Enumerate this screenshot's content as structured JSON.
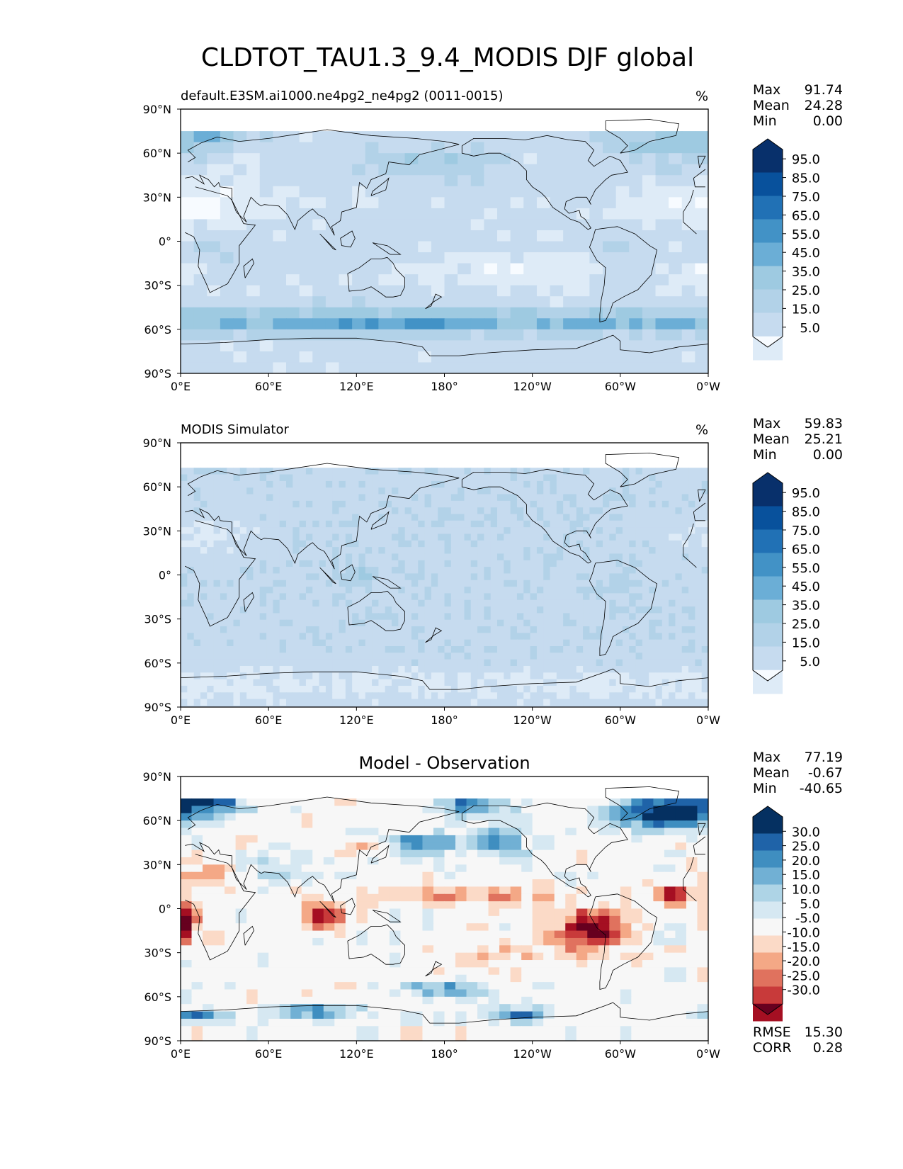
{
  "figure": {
    "title": "CLDTOT_TAU1.3_9.4_MODIS DJF global"
  },
  "axes_labels": {
    "lat_ticks": [
      "90°N",
      "60°N",
      "30°N",
      "0°",
      "30°S",
      "60°S",
      "90°S"
    ],
    "lon_ticks": [
      "0°E",
      "60°E",
      "120°E",
      "180°",
      "120°W",
      "60°W",
      "0°W"
    ]
  },
  "colors": {
    "blues": [
      "#f7fbff",
      "#deebf7",
      "#c6dbef",
      "#b2d2e8",
      "#9ecae1",
      "#6baed6",
      "#4292c6",
      "#2171b5",
      "#08519c",
      "#08306b"
    ],
    "diverging": [
      "#67001f",
      "#a50f22",
      "#c83a3a",
      "#e0725e",
      "#f4a886",
      "#fbdac7",
      "#f7f7f7",
      "#d6e8f2",
      "#aed4e6",
      "#71b0d4",
      "#3f8ec0",
      "#1f63a8",
      "#053061"
    ]
  },
  "chart_data": [
    {
      "type": "heatmap",
      "title": "default.E3SM.ai1000.ne4pg2_ne4pg2 (0011-0015)",
      "units": "%",
      "stats": [
        {
          "label": "Max",
          "value": "91.74"
        },
        {
          "label": "Mean",
          "value": "24.28"
        },
        {
          "label": "Min",
          "value": "0.00"
        }
      ],
      "colorbar_ticks": [
        "95.0",
        "85.0",
        "75.0",
        "65.0",
        "55.0",
        "45.0",
        "35.0",
        "25.0",
        "15.0",
        "5.0"
      ],
      "xlim": [
        0,
        360
      ],
      "ylim": [
        -90,
        90
      ]
    },
    {
      "type": "heatmap",
      "title": "MODIS Simulator",
      "units": "%",
      "stats": [
        {
          "label": "Max",
          "value": "59.83"
        },
        {
          "label": "Mean",
          "value": "25.21"
        },
        {
          "label": "Min",
          "value": "0.00"
        }
      ],
      "colorbar_ticks": [
        "95.0",
        "85.0",
        "75.0",
        "65.0",
        "55.0",
        "45.0",
        "35.0",
        "25.0",
        "15.0",
        "5.0"
      ],
      "xlim": [
        0,
        360
      ],
      "ylim": [
        -90,
        90
      ]
    },
    {
      "type": "heatmap",
      "title": "Model - Observation",
      "units": "",
      "stats": [
        {
          "label": "Max",
          "value": "77.19"
        },
        {
          "label": "Mean",
          "value": "-0.67"
        },
        {
          "label": "Min",
          "value": "-40.65"
        }
      ],
      "colorbar_ticks": [
        "30.0",
        "25.0",
        "20.0",
        "15.0",
        "10.0",
        "5.0",
        "-5.0",
        "-10.0",
        "-15.0",
        "-20.0",
        "-25.0",
        "-30.0"
      ],
      "extra_stats": [
        {
          "label": "RMSE",
          "value": "15.30"
        },
        {
          "label": "CORR",
          "value": "0.28"
        }
      ],
      "xlim": [
        0,
        360
      ],
      "ylim": [
        -90,
        90
      ]
    }
  ]
}
